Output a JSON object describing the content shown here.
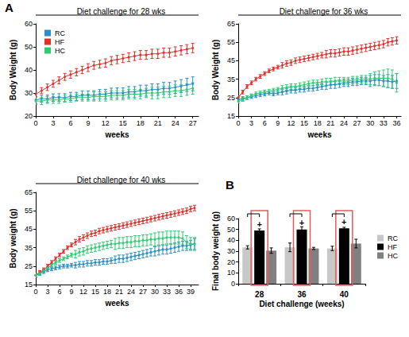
{
  "chart_data": [
    {
      "type": "line",
      "panel_label": "A",
      "title": "Diet challenge for 28 wks",
      "x_label": "weeks",
      "y_label": "Body Weight (g)",
      "x": [
        0,
        1,
        2,
        3,
        4,
        5,
        6,
        7,
        8,
        9,
        10,
        11,
        12,
        13,
        14,
        15,
        16,
        17,
        18,
        19,
        20,
        21,
        22,
        23,
        24,
        25,
        26,
        27
      ],
      "xlim": [
        0,
        28
      ],
      "xticks": [
        0,
        3,
        6,
        9,
        12,
        15,
        18,
        21,
        24,
        27
      ],
      "ylim": [
        20,
        60
      ],
      "yticks": [
        20,
        30,
        40,
        50,
        60
      ],
      "grid": false,
      "legend": "upper left",
      "series": [
        {
          "name": "RC",
          "color": "#2a8fc8",
          "values": [
            27,
            27.5,
            27.5,
            28,
            28,
            28,
            28.5,
            28.5,
            29,
            29,
            29,
            29.5,
            29.5,
            30,
            30,
            30,
            30.5,
            30.5,
            31,
            31,
            31.5,
            31.5,
            32,
            32,
            32.5,
            33,
            33.5,
            34
          ],
          "errors": [
            1.5,
            1.5,
            1.6,
            1.6,
            1.7,
            1.7,
            1.8,
            1.8,
            1.9,
            1.9,
            2,
            2,
            2.1,
            2.1,
            2.2,
            2.2,
            2.3,
            2.3,
            2.4,
            2.4,
            2.5,
            2.5,
            2.6,
            2.6,
            2.7,
            2.8,
            2.9,
            3
          ]
        },
        {
          "name": "HF",
          "color": "#e0302a",
          "values": [
            29.5,
            31,
            32.5,
            34,
            35.5,
            37,
            38,
            39,
            40,
            41,
            42,
            42.5,
            43,
            44,
            44.5,
            45,
            45.5,
            46,
            46.5,
            46.5,
            47,
            47,
            47.5,
            47.5,
            48,
            48.5,
            49,
            49.5
          ],
          "errors": [
            1.2,
            1.3,
            1.4,
            1.5,
            1.5,
            1.5,
            1.6,
            1.6,
            1.6,
            1.7,
            1.7,
            1.7,
            1.8,
            1.8,
            1.8,
            1.8,
            1.9,
            1.9,
            1.9,
            1.9,
            2,
            2,
            2,
            2,
            2,
            2,
            2,
            2
          ]
        },
        {
          "name": "HC",
          "color": "#2ecc71",
          "values": [
            26.5,
            26.5,
            27,
            27,
            27,
            27.5,
            27.5,
            28,
            28,
            28,
            28.5,
            28.5,
            28.5,
            29,
            29,
            29,
            29.5,
            29.5,
            29.5,
            30,
            30,
            30,
            30.5,
            30.5,
            31,
            31,
            31.5,
            32
          ],
          "errors": [
            1.5,
            1.5,
            1.5,
            1.5,
            1.5,
            1.5,
            1.5,
            1.5,
            1.5,
            1.5,
            2,
            2,
            2,
            2,
            2,
            2,
            2,
            2,
            2,
            2,
            2.5,
            2.5,
            2.5,
            2.5,
            2.5,
            2.5,
            2.5,
            2.5
          ]
        }
      ]
    },
    {
      "type": "line",
      "title": "Diet challenge for 36 wks",
      "x_label": "weeks",
      "y_label": "Body Weight (g)",
      "x": [
        0,
        1,
        2,
        3,
        4,
        5,
        6,
        7,
        8,
        9,
        10,
        11,
        12,
        13,
        14,
        15,
        16,
        17,
        18,
        19,
        20,
        21,
        22,
        23,
        24,
        25,
        26,
        27,
        28,
        29,
        30,
        31,
        32,
        33,
        34,
        35,
        36
      ],
      "xlim": [
        0,
        37
      ],
      "xticks": [
        0,
        3,
        6,
        9,
        12,
        15,
        18,
        21,
        24,
        27,
        30,
        33,
        36
      ],
      "ylim": [
        15,
        65
      ],
      "yticks": [
        15,
        25,
        35,
        45,
        55,
        65
      ],
      "grid": false,
      "series": [
        {
          "color": "#2a8fc8",
          "values": [
            24,
            24.5,
            25,
            25.5,
            26,
            26.5,
            27,
            27.5,
            27,
            27.5,
            28,
            28.5,
            29,
            29,
            29.5,
            29.5,
            30,
            30,
            30.5,
            31,
            31.5,
            32,
            32,
            32.5,
            33,
            33,
            33.5,
            33.5,
            34,
            34,
            34,
            34.5,
            34.5,
            34,
            34,
            33.5,
            34
          ],
          "errors": [
            1,
            1,
            1,
            1,
            1,
            1,
            1,
            1,
            1,
            1,
            1.5,
            1.5,
            1.5,
            1.5,
            1.5,
            1.5,
            1.5,
            1.5,
            1.5,
            1.5,
            2,
            2,
            2,
            2,
            2,
            2,
            2,
            2,
            2,
            2,
            3,
            3,
            3,
            3,
            3.5,
            3.5,
            4
          ]
        },
        {
          "color": "#e0302a",
          "values": [
            25,
            28,
            31,
            33,
            35,
            36.5,
            38,
            39.5,
            40.5,
            41.5,
            42.5,
            43.5,
            44,
            45,
            45.5,
            46,
            46.5,
            47,
            47.5,
            48,
            48.5,
            49,
            49,
            49.5,
            50,
            50,
            50.5,
            51,
            51.5,
            52,
            52.5,
            53,
            53.5,
            54,
            55,
            55.5,
            56
          ],
          "errors": [
            1,
            1,
            1,
            1,
            1,
            1,
            1,
            1,
            1,
            1,
            1.5,
            1.5,
            1.5,
            1.5,
            1.5,
            1.5,
            1.5,
            1.5,
            1.5,
            1.5,
            2,
            2,
            2,
            2,
            2,
            2,
            2,
            2,
            2,
            2,
            2,
            2,
            2,
            2,
            2,
            2,
            2
          ]
        },
        {
          "color": "#2ecc71",
          "values": [
            23,
            24,
            25,
            26,
            27,
            27.5,
            28,
            28.5,
            29,
            29.5,
            30,
            30.5,
            31,
            31,
            31.5,
            32,
            32.5,
            33,
            33,
            33.5,
            33.5,
            33.5,
            34,
            34,
            34,
            34,
            34.5,
            34.5,
            35,
            35,
            35,
            35.5,
            35.5,
            35.5,
            35.5,
            35,
            33
          ],
          "errors": [
            1,
            1,
            1,
            1,
            1,
            1,
            1,
            1,
            1,
            1,
            1.5,
            1.5,
            1.5,
            1.5,
            1.5,
            1.5,
            1.5,
            1.5,
            1.5,
            1.5,
            2,
            2,
            2,
            2,
            2,
            2,
            2,
            2,
            2,
            2,
            3,
            3.5,
            4,
            4.5,
            5,
            5,
            5
          ]
        }
      ]
    },
    {
      "type": "line",
      "title": "Diet challenge for 40 wks",
      "x_label": "weeks",
      "y_label": "Body weight (g)",
      "x": [
        0,
        1,
        2,
        3,
        4,
        5,
        6,
        7,
        8,
        9,
        10,
        11,
        12,
        13,
        14,
        15,
        16,
        17,
        18,
        19,
        20,
        21,
        22,
        23,
        24,
        25,
        26,
        27,
        28,
        29,
        30,
        31,
        32,
        33,
        34,
        35,
        36,
        37,
        38,
        39,
        40
      ],
      "xlim": [
        0,
        41
      ],
      "xticks": [
        0,
        3,
        6,
        9,
        12,
        15,
        18,
        21,
        24,
        27,
        30,
        33,
        36,
        39
      ],
      "ylim": [
        15,
        65
      ],
      "yticks": [
        15,
        25,
        35,
        45,
        55,
        65
      ],
      "grid": false,
      "series": [
        {
          "color": "#2a8fc8",
          "values": [
            20,
            21,
            22,
            23,
            23.5,
            24,
            24.5,
            25,
            25,
            25.5,
            25.5,
            26,
            26,
            26.5,
            26.5,
            27,
            27,
            27.5,
            27.5,
            28,
            28.5,
            29,
            29,
            29.5,
            30,
            30.5,
            31,
            31.5,
            32,
            32.5,
            33,
            33.5,
            34,
            34,
            34.5,
            35,
            35.5,
            36,
            36,
            36.5,
            37
          ],
          "errors": [
            1,
            1,
            1,
            1,
            1,
            1,
            1,
            1,
            1,
            1,
            1.5,
            1.5,
            1.5,
            1.5,
            1.5,
            1.5,
            1.5,
            1.5,
            1.5,
            1.5,
            2,
            2,
            2,
            2,
            2,
            2,
            2,
            2,
            2,
            2,
            2.5,
            2.5,
            2.5,
            2.5,
            2.5,
            2.5,
            2.5,
            2.5,
            2.5,
            2.5,
            3
          ]
        },
        {
          "color": "#e0302a",
          "values": [
            20,
            21.5,
            23,
            25,
            27,
            29,
            31,
            33,
            35,
            36.5,
            38,
            39.5,
            40.5,
            41.5,
            42.5,
            43,
            44,
            44.5,
            45,
            45.5,
            46,
            46.5,
            47,
            47.5,
            48,
            48.5,
            49,
            49.5,
            50,
            50.5,
            51,
            51.5,
            52,
            52.5,
            53,
            53.5,
            54,
            54.5,
            55,
            56,
            56.5
          ],
          "errors": [
            1,
            1,
            1,
            1,
            1,
            1,
            1,
            1,
            1,
            1,
            1.5,
            1.5,
            1.5,
            1.5,
            1.5,
            1.5,
            1.5,
            1.5,
            1.5,
            1.5,
            1.5,
            1.5,
            1.5,
            1.5,
            1.5,
            1.5,
            1.5,
            1.5,
            1.5,
            1.5,
            1.5,
            1.5,
            1.5,
            1.5,
            1.5,
            1.5,
            1.5,
            1.5,
            1.5,
            1.5,
            1.5
          ]
        },
        {
          "color": "#2ecc71",
          "values": [
            20,
            21,
            22.5,
            24,
            25.5,
            27,
            28,
            29,
            30,
            31,
            31.5,
            32.5,
            33,
            34,
            34.5,
            35,
            35.5,
            36,
            36.5,
            37,
            37,
            37.5,
            37.5,
            38,
            38,
            38.5,
            38.5,
            39,
            39,
            39.5,
            39.5,
            40,
            40,
            40.5,
            40.5,
            40.5,
            40.5,
            40,
            38,
            37,
            37
          ],
          "errors": [
            1,
            1,
            1,
            1,
            1,
            1,
            1,
            1,
            1,
            1,
            2,
            2,
            2,
            2,
            2,
            2,
            2,
            2,
            2,
            2,
            3,
            3,
            3,
            3,
            3,
            3,
            3,
            3,
            3,
            3,
            3.5,
            3.5,
            3.5,
            3.5,
            3.5,
            3.5,
            3.5,
            3.5,
            3.5,
            3.5,
            3.5
          ]
        }
      ]
    },
    {
      "type": "bar",
      "panel_label": "B",
      "x_label": "Diet challenge (weeks)",
      "y_label": "Final body weight (g)",
      "categories": [
        "28",
        "36",
        "40"
      ],
      "ylim": [
        0,
        60
      ],
      "yticks": [
        0,
        10,
        20,
        30,
        40,
        50,
        60
      ],
      "grid": false,
      "legend": "right",
      "series": [
        {
          "name": "RC",
          "color": "#c8c8c8",
          "values": [
            33.5,
            33.5,
            32.5
          ],
          "errors": [
            1.5,
            4,
            2
          ]
        },
        {
          "name": "HF",
          "color": "#000000",
          "values": [
            49,
            50,
            51
          ],
          "errors": [
            1.5,
            2.5,
            1
          ]
        },
        {
          "name": "HC",
          "color": "#808080",
          "values": [
            30.5,
            32.5,
            37
          ],
          "errors": [
            2.5,
            1,
            4
          ]
        }
      ],
      "annotations": [
        {
          "category": "28",
          "series": "HF",
          "text": "+"
        },
        {
          "category": "36",
          "series": "HF",
          "text": "+"
        },
        {
          "category": "40",
          "series": "HF",
          "text": "+"
        }
      ]
    }
  ]
}
